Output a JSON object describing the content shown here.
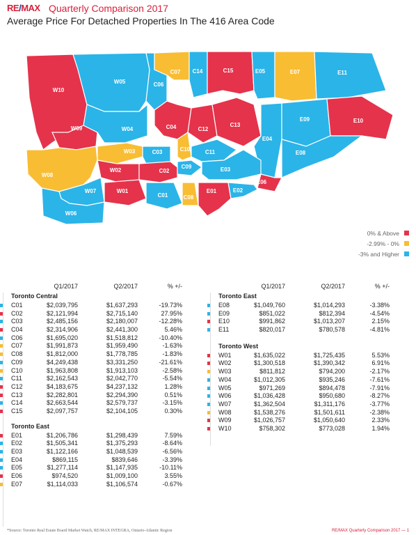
{
  "header": {
    "logo": "RE/MAX",
    "title": "Quarterly Comparison 2017",
    "subtitle": "Average Price For Detached Properties In The 416 Area Code"
  },
  "colors": {
    "red": "#e5334b",
    "yellow": "#f8bd33",
    "blue": "#2bb4e8"
  },
  "legend": [
    {
      "label": "0% & Above",
      "color": "#e5334b"
    },
    {
      "label": "-2.99% - 0%",
      "color": "#f8bd33"
    },
    {
      "label": "-3% and Higher",
      "color": "#2bb4e8"
    }
  ],
  "table_headers": {
    "q1": "Q1/2017",
    "q2": "Q2/2017",
    "change": "% +/-"
  },
  "chart_data": {
    "type": "table",
    "sections": [
      {
        "name": "Toronto Central",
        "rows": [
          {
            "code": "C01",
            "q1": "$2,039,795",
            "q2": "$1,637,293",
            "change": "-19.73%",
            "color": "#2bb4e8"
          },
          {
            "code": "C02",
            "q1": "$2,121,994",
            "q2": "$2,715,140",
            "change": "27.95%",
            "color": "#e5334b"
          },
          {
            "code": "C03",
            "q1": "$2,485,156",
            "q2": "$2,180,007",
            "change": "-12.28%",
            "color": "#2bb4e8"
          },
          {
            "code": "C04",
            "q1": "$2,314,906",
            "q2": "$2,441,300",
            "change": "5.46%",
            "color": "#e5334b"
          },
          {
            "code": "C06",
            "q1": "$1,695,020",
            "q2": "$1,518,812",
            "change": "-10.40%",
            "color": "#2bb4e8"
          },
          {
            "code": "C07",
            "q1": "$1,991,873",
            "q2": "$1,959,490",
            "change": "-1.63%",
            "color": "#f8bd33"
          },
          {
            "code": "C08",
            "q1": "$1,812,000",
            "q2": "$1,778,785",
            "change": "-1.83%",
            "color": "#f8bd33"
          },
          {
            "code": "C09",
            "q1": "$4,249,438",
            "q2": "$3,331,250",
            "change": "-21.61%",
            "color": "#2bb4e8"
          },
          {
            "code": "C10",
            "q1": "$1,963,808",
            "q2": "$1,913,103",
            "change": "-2.58%",
            "color": "#f8bd33"
          },
          {
            "code": "C11",
            "q1": "$2,162,543",
            "q2": "$2,042,770",
            "change": "-5.54%",
            "color": "#2bb4e8"
          },
          {
            "code": "C12",
            "q1": "$4,183,675",
            "q2": "$4,237,132",
            "change": "1.28%",
            "color": "#e5334b"
          },
          {
            "code": "C13",
            "q1": "$2,282,801",
            "q2": "$2,294,390",
            "change": "0.51%",
            "color": "#e5334b"
          },
          {
            "code": "C14",
            "q1": "$2,663,544",
            "q2": "$2,579,737",
            "change": "-3.15%",
            "color": "#2bb4e8"
          },
          {
            "code": "C15",
            "q1": "$2,097,757",
            "q2": "$2,104,105",
            "change": "0.30%",
            "color": "#e5334b"
          }
        ]
      },
      {
        "name": "Toronto East",
        "rows": [
          {
            "code": "E01",
            "q1": "$1,206,786",
            "q2": "$1,298,439",
            "change": "7.59%",
            "color": "#e5334b"
          },
          {
            "code": "E02",
            "q1": "$1,505,341",
            "q2": "$1,375,293",
            "change": "-8.64%",
            "color": "#2bb4e8"
          },
          {
            "code": "E03",
            "q1": "$1,122,166",
            "q2": "$1,048,539",
            "change": "-6.56%",
            "color": "#2bb4e8"
          },
          {
            "code": "E04",
            "q1": "$869,115",
            "q2": "$839,646",
            "change": "-3.39%",
            "color": "#2bb4e8"
          },
          {
            "code": "E05",
            "q1": "$1,277,114",
            "q2": "$1,147,935",
            "change": "-10.11%",
            "color": "#2bb4e8"
          },
          {
            "code": "E06",
            "q1": "$974,520",
            "q2": "$1,009,100",
            "change": "3.55%",
            "color": "#e5334b"
          },
          {
            "code": "E07",
            "q1": "$1,114,033",
            "q2": "$1,106,574",
            "change": "-0.67%",
            "color": "#f8bd33"
          }
        ]
      },
      {
        "name": "Toronto East",
        "rows": [
          {
            "code": "E08",
            "q1": "$1,049,760",
            "q2": "$1,014,293",
            "change": "-3.38%",
            "color": "#2bb4e8"
          },
          {
            "code": "E09",
            "q1": "$851,022",
            "q2": "$812,394",
            "change": "-4.54%",
            "color": "#2bb4e8"
          },
          {
            "code": "E10",
            "q1": "$991,862",
            "q2": "$1,013,207",
            "change": "2.15%",
            "color": "#e5334b"
          },
          {
            "code": "E11",
            "q1": "$820,017",
            "q2": "$780,578",
            "change": "-4.81%",
            "color": "#2bb4e8"
          }
        ]
      },
      {
        "name": "Toronto West",
        "rows": [
          {
            "code": "W01",
            "q1": "$1,635,022",
            "q2": "$1,725,435",
            "change": "5.53%",
            "color": "#e5334b"
          },
          {
            "code": "W02",
            "q1": "$1,300,518",
            "q2": "$1,390,342",
            "change": "6.91%",
            "color": "#e5334b"
          },
          {
            "code": "W03",
            "q1": "$811,812",
            "q2": "$794,200",
            "change": "-2.17%",
            "color": "#f8bd33"
          },
          {
            "code": "W04",
            "q1": "$1,012,305",
            "q2": "$935,246",
            "change": "-7.61%",
            "color": "#2bb4e8"
          },
          {
            "code": "W05",
            "q1": "$971,269",
            "q2": "$894,478",
            "change": "-7.91%",
            "color": "#2bb4e8"
          },
          {
            "code": "W06",
            "q1": "$1,036,428",
            "q2": "$950,680",
            "change": "-8.27%",
            "color": "#2bb4e8"
          },
          {
            "code": "W07",
            "q1": "$1,362,504",
            "q2": "$1,311,176",
            "change": "-3.77%",
            "color": "#2bb4e8"
          },
          {
            "code": "W08",
            "q1": "$1,538,276",
            "q2": "$1,501,611",
            "change": "-2.38%",
            "color": "#f8bd33"
          },
          {
            "code": "W09",
            "q1": "$1,026,757",
            "q2": "$1,050,640",
            "change": "2.33%",
            "color": "#e5334b"
          },
          {
            "code": "W10",
            "q1": "$758,302",
            "q2": "$773,028",
            "change": "1.94%",
            "color": "#e5334b"
          }
        ]
      }
    ]
  },
  "footer": {
    "source": "*Source: Toronto Real Estate Board Market Watch, RE/MAX INTEGRA, Ontario-Atlantic Region",
    "page": "RE/MAX Quarterly Comparison 2017 — 1"
  }
}
